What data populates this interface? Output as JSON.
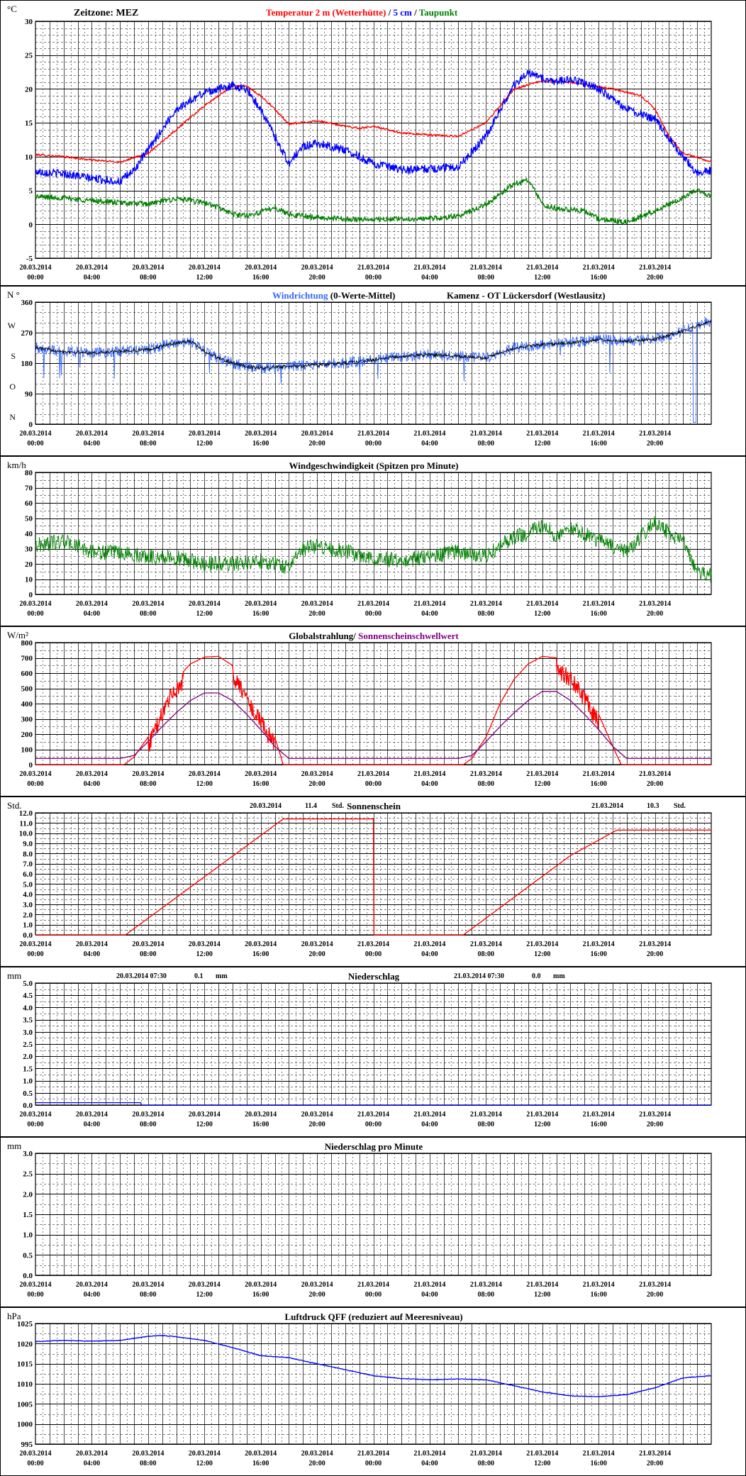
{
  "time_labels": [
    [
      "20.03.2014",
      "00:00"
    ],
    [
      "20.03.2014",
      "04:00"
    ],
    [
      "20.03.2014",
      "08:00"
    ],
    [
      "20.03.2014",
      "12:00"
    ],
    [
      "20.03.2014",
      "16:00"
    ],
    [
      "20.03.2014",
      "20:00"
    ],
    [
      "21.03.2014",
      "00:00"
    ],
    [
      "21.03.2014",
      "04:00"
    ],
    [
      "21.03.2014",
      "08:00"
    ],
    [
      "21.03.2014",
      "12:00"
    ],
    [
      "21.03.2014",
      "16:00"
    ],
    [
      "21.03.2014",
      "20:00"
    ]
  ],
  "colors": {
    "red": "#ff0000",
    "blue": "#0000ff",
    "green": "#008000",
    "black": "#000000",
    "purple": "#800080",
    "lightblue": "#3366ff",
    "navy": "#000080"
  },
  "chart_data": [
    {
      "id": "temperature",
      "type": "line",
      "unit_label": "°C",
      "header_left": "Zeitzone: MEZ",
      "title_parts": [
        {
          "text": "Temperatur 2 m (Wetterhütte)",
          "color": "#ff0000"
        },
        {
          "text": "  /  ",
          "color": "#000000"
        },
        {
          "text": "5 cm",
          "color": "#0000ff"
        },
        {
          "text": " / ",
          "color": "#000000"
        },
        {
          "text": "Taupunkt",
          "color": "#008000"
        }
      ],
      "ylim": [
        -5,
        30
      ],
      "yticks": [
        -5,
        0,
        5,
        10,
        15,
        20,
        25,
        30
      ],
      "ytick_labels": [
        "-5",
        "0",
        "5",
        "10",
        "15",
        "20",
        "25",
        "30"
      ],
      "minor_step": 1,
      "series": [
        {
          "name": "Temperatur 2 m (Wetterhütte)",
          "color": "#ff0000",
          "noise": 0.15,
          "x": [
            0,
            2,
            4,
            6,
            8,
            10,
            12,
            14,
            15,
            16,
            17,
            18,
            20,
            22,
            23,
            24,
            26,
            28,
            30,
            32,
            33,
            34,
            36,
            38,
            40,
            41,
            42,
            43,
            44,
            45,
            46,
            48
          ],
          "y": [
            10.3,
            10,
            9.5,
            9.2,
            10.5,
            14,
            17.5,
            20.5,
            20.4,
            19,
            17,
            14.8,
            15.3,
            14.5,
            14.2,
            14.5,
            13.5,
            13.2,
            13,
            15,
            17.5,
            20,
            21.2,
            21,
            20.3,
            20,
            19.5,
            19,
            17,
            13,
            10.5,
            9.2
          ]
        },
        {
          "name": "5 cm",
          "color": "#0000ff",
          "noise": 0.6,
          "x": [
            0,
            2,
            4,
            6,
            7,
            8,
            9,
            10,
            12,
            14,
            15,
            16,
            17,
            18,
            19,
            20,
            22,
            24,
            26,
            28,
            30,
            32,
            33,
            34,
            35,
            36,
            37,
            38,
            40,
            42,
            44,
            46,
            47,
            48
          ],
          "y": [
            7.8,
            7.5,
            6.8,
            6.3,
            8,
            11,
            14,
            17,
            19.5,
            20.5,
            20,
            17,
            13,
            9,
            11.5,
            12,
            11,
            9,
            8,
            8.2,
            8.5,
            13,
            17,
            20.5,
            22.5,
            21.5,
            21,
            21.5,
            20,
            17,
            15.5,
            10,
            7.5,
            8
          ]
        },
        {
          "name": "Taupunkt",
          "color": "#008000",
          "noise": 0.4,
          "x": [
            0,
            2,
            4,
            6,
            8,
            10,
            12,
            13,
            14,
            15,
            16,
            17,
            18,
            20,
            22,
            24,
            26,
            28,
            30,
            31,
            32,
            33,
            34,
            35,
            36,
            37,
            38,
            39,
            40,
            42,
            44,
            46,
            47,
            48
          ],
          "y": [
            4.1,
            3.9,
            3.5,
            3.2,
            3,
            3.8,
            3.2,
            2.5,
            1.5,
            1.3,
            1.8,
            2.5,
            1.5,
            1,
            0.8,
            0.7,
            0.8,
            0.8,
            1.2,
            2,
            3,
            4.5,
            6,
            6.5,
            3,
            2.3,
            2.2,
            2,
            0.8,
            0.3,
            2,
            4,
            5,
            4.2
          ]
        }
      ]
    },
    {
      "id": "wind_direction",
      "type": "line",
      "unit_label": "N °",
      "title_parts": [
        {
          "text": "Windrichtung",
          "color": "#3366ff"
        },
        {
          "text": " (0-Werte-Mittel)",
          "color": "#000000"
        },
        {
          "text": "Kamenz - OT Lückersdorf (Westlausitz)",
          "color": "#000000"
        }
      ],
      "ylim": [
        0,
        360
      ],
      "yticks": [
        0,
        90,
        180,
        270,
        360
      ],
      "ytick_labels": [
        "0",
        "90",
        "180",
        "270",
        "360"
      ],
      "compass_labels": [
        "N",
        "O",
        "S",
        "W"
      ],
      "minor_step": 30,
      "series": [
        {
          "name": "Windrichtung",
          "color": "#3366ff",
          "noise": 16,
          "x": [
            0,
            2,
            4,
            6,
            8,
            10,
            11,
            12,
            13,
            14,
            15,
            16,
            18,
            20,
            22,
            24,
            26,
            28,
            30,
            32,
            33,
            34,
            36,
            38,
            40,
            42,
            44,
            46,
            47,
            48
          ],
          "y": [
            225,
            215,
            210,
            215,
            220,
            240,
            245,
            215,
            195,
            180,
            170,
            165,
            170,
            175,
            180,
            190,
            200,
            205,
            200,
            195,
            210,
            225,
            235,
            240,
            250,
            245,
            250,
            275,
            290,
            305
          ]
        },
        {
          "name": "Mittel",
          "color": "#000000",
          "noise": 5,
          "x": [
            0,
            2,
            4,
            6,
            8,
            10,
            11,
            12,
            13,
            14,
            15,
            16,
            18,
            20,
            22,
            24,
            26,
            28,
            30,
            32,
            33,
            34,
            36,
            38,
            40,
            42,
            44,
            46,
            47,
            48
          ],
          "y": [
            225,
            215,
            210,
            215,
            220,
            240,
            245,
            215,
            195,
            180,
            170,
            165,
            170,
            175,
            180,
            190,
            200,
            205,
            200,
            195,
            210,
            225,
            235,
            240,
            250,
            245,
            250,
            275,
            290,
            305
          ]
        }
      ]
    },
    {
      "id": "wind_speed",
      "type": "line",
      "unit_label": "km/h",
      "title_parts": [
        {
          "text": "Windgeschwindigkeit (Spitzen pro Minute)",
          "color": "#000000"
        }
      ],
      "ylim": [
        0,
        80
      ],
      "yticks": [
        0,
        10,
        20,
        30,
        40,
        50,
        60,
        70,
        80
      ],
      "ytick_labels": [
        "0",
        "10",
        "20",
        "30",
        "40",
        "50",
        "60",
        "70",
        "80"
      ],
      "minor_step": 5,
      "series": [
        {
          "name": "Windgeschwindigkeit",
          "color": "#008000",
          "noise": 5,
          "x": [
            0,
            2,
            4,
            6,
            8,
            10,
            12,
            14,
            16,
            18,
            19,
            20,
            22,
            24,
            26,
            28,
            30,
            32,
            34,
            35,
            36,
            37,
            38,
            40,
            42,
            44,
            45,
            46,
            47,
            48
          ],
          "y": [
            32,
            35,
            28,
            27,
            25,
            24,
            20,
            20,
            22,
            18,
            30,
            32,
            28,
            24,
            22,
            25,
            28,
            25,
            38,
            40,
            45,
            38,
            44,
            35,
            28,
            48,
            40,
            35,
            15,
            12
          ]
        }
      ]
    },
    {
      "id": "global_radiation",
      "type": "line",
      "unit_label": "W/m²",
      "title_parts": [
        {
          "text": "Globalstrahlung",
          "color": "#000000"
        },
        {
          "text": "/ ",
          "color": "#000000"
        },
        {
          "text": "Sonnenscheinschwellwert",
          "color": "#800080"
        }
      ],
      "ylim": [
        0,
        800
      ],
      "yticks": [
        0,
        100,
        200,
        300,
        400,
        500,
        600,
        700,
        800
      ],
      "ytick_labels": [
        "0",
        "100",
        "200",
        "300",
        "400",
        "500",
        "600",
        "700",
        "800"
      ],
      "minor_step": 50,
      "series": [
        {
          "name": "Globalstrahlung",
          "color": "#ff0000",
          "noise": 0,
          "x": [
            0,
            6.3,
            7,
            8,
            9,
            10,
            11,
            12,
            13,
            14,
            15,
            16,
            17,
            17.6,
            24,
            30.4,
            31,
            32,
            33,
            34,
            35,
            36,
            37,
            38,
            39,
            40,
            41,
            41.6,
            48
          ],
          "y": [
            0,
            0,
            50,
            180,
            400,
            560,
            660,
            705,
            710,
            650,
            500,
            350,
            180,
            0,
            0,
            0,
            40,
            180,
            400,
            560,
            660,
            710,
            700,
            620,
            500,
            330,
            120,
            0,
            0
          ]
        },
        {
          "name": "Sonnenscheinschwellwert",
          "color": "#800080",
          "noise": 0,
          "x": [
            0,
            6,
            7,
            8,
            9,
            10,
            11,
            12,
            13,
            14,
            15,
            16,
            17,
            18,
            24,
            30,
            31,
            32,
            33,
            34,
            35,
            36,
            37,
            38,
            39,
            40,
            41,
            42,
            48
          ],
          "y": [
            40,
            40,
            60,
            150,
            250,
            340,
            420,
            470,
            470,
            420,
            330,
            230,
            120,
            40,
            40,
            40,
            60,
            150,
            250,
            340,
            420,
            480,
            480,
            420,
            330,
            230,
            120,
            40,
            40
          ]
        }
      ]
    },
    {
      "id": "sunshine",
      "type": "line",
      "unit_label": "Std.",
      "header_entries": [
        {
          "date": "20.03.2014",
          "value": "11.4",
          "unit": "Std."
        },
        {
          "date": "21.03.2014",
          "value": "10.3",
          "unit": "Std."
        }
      ],
      "title_parts": [
        {
          "text": "Sonnenschein",
          "color": "#000000"
        }
      ],
      "ylim": [
        0,
        12
      ],
      "yticks": [
        0,
        1,
        2,
        3,
        4,
        5,
        6,
        7,
        8,
        9,
        10,
        11,
        12
      ],
      "ytick_labels": [
        "0.0",
        "1.0",
        "2.0",
        "3.0",
        "4.0",
        "5.0",
        "6.0",
        "7.0",
        "8.0",
        "9.0",
        "10.0",
        "11.0",
        "12.0"
      ],
      "minor_step": 0.5,
      "series": [
        {
          "name": "Sonnenschein",
          "color": "#ff0000",
          "noise": 0,
          "x": [
            0,
            6.4,
            17.6,
            24,
            24,
            30.4,
            38,
            41.3,
            48
          ],
          "y": [
            0,
            0,
            11.4,
            11.4,
            0,
            0,
            7.8,
            10.3,
            10.3
          ]
        }
      ]
    },
    {
      "id": "precipitation",
      "type": "line",
      "unit_label": "mm",
      "header_entries": [
        {
          "date": "20.03.2014 07:30",
          "value": "0.1",
          "unit": "mm"
        },
        {
          "date": "21.03.2014 07:30",
          "value": "0.0",
          "unit": "mm"
        }
      ],
      "title_parts": [
        {
          "text": "Niederschlag",
          "color": "#000000"
        }
      ],
      "ylim": [
        0,
        5
      ],
      "yticks": [
        0,
        0.5,
        1,
        1.5,
        2,
        2.5,
        3,
        3.5,
        4,
        4.5,
        5
      ],
      "ytick_labels": [
        "0.0",
        "0.5",
        "1.0",
        "1.5",
        "2.0",
        "2.5",
        "3.0",
        "3.5",
        "4.0",
        "4.5",
        "5.0"
      ],
      "minor_step": 0.25,
      "series": [
        {
          "name": "Niederschlag",
          "color": "#0000ff",
          "noise": 0,
          "x": [
            0,
            7.5,
            7.5,
            48
          ],
          "y": [
            0.1,
            0.1,
            0,
            0
          ]
        }
      ]
    },
    {
      "id": "precipitation_per_minute",
      "type": "line",
      "unit_label": "mm",
      "title_parts": [
        {
          "text": "Niederschlag pro Minute",
          "color": "#000000"
        }
      ],
      "ylim": [
        0,
        3
      ],
      "yticks": [
        0,
        0.5,
        1,
        1.5,
        2,
        2.5,
        3
      ],
      "ytick_labels": [
        "0.0",
        "0.5",
        "1.0",
        "1.5",
        "2.0",
        "2.5",
        "3.0"
      ],
      "minor_step": 0.25,
      "series": []
    },
    {
      "id": "pressure",
      "type": "line",
      "unit_label": "hPa",
      "title_parts": [
        {
          "text": "Luftdruck QFF (reduziert auf Meeresniveau)",
          "color": "#000000"
        }
      ],
      "ylim": [
        995,
        1025
      ],
      "yticks": [
        995,
        1000,
        1005,
        1010,
        1015,
        1020,
        1025
      ],
      "ytick_labels": [
        "995",
        "1000",
        "1005",
        "1010",
        "1015",
        "1020",
        "1025"
      ],
      "minor_step": 2.5,
      "series": [
        {
          "name": "Luftdruck",
          "color": "#0000ff",
          "noise": 0.08,
          "x": [
            0,
            2,
            4,
            6,
            8,
            9,
            10,
            12,
            14,
            16,
            18,
            20,
            22,
            24,
            26,
            28,
            30,
            32,
            34,
            36,
            38,
            40,
            42,
            44,
            46,
            48
          ],
          "y": [
            1020.5,
            1020.8,
            1020.6,
            1020.8,
            1021.8,
            1022,
            1021.7,
            1020.8,
            1019,
            1017,
            1016.5,
            1015,
            1013.5,
            1012,
            1011.3,
            1011,
            1011.2,
            1011,
            1009.5,
            1008,
            1007,
            1006.8,
            1007.3,
            1009,
            1011.5,
            1012
          ]
        }
      ]
    }
  ]
}
